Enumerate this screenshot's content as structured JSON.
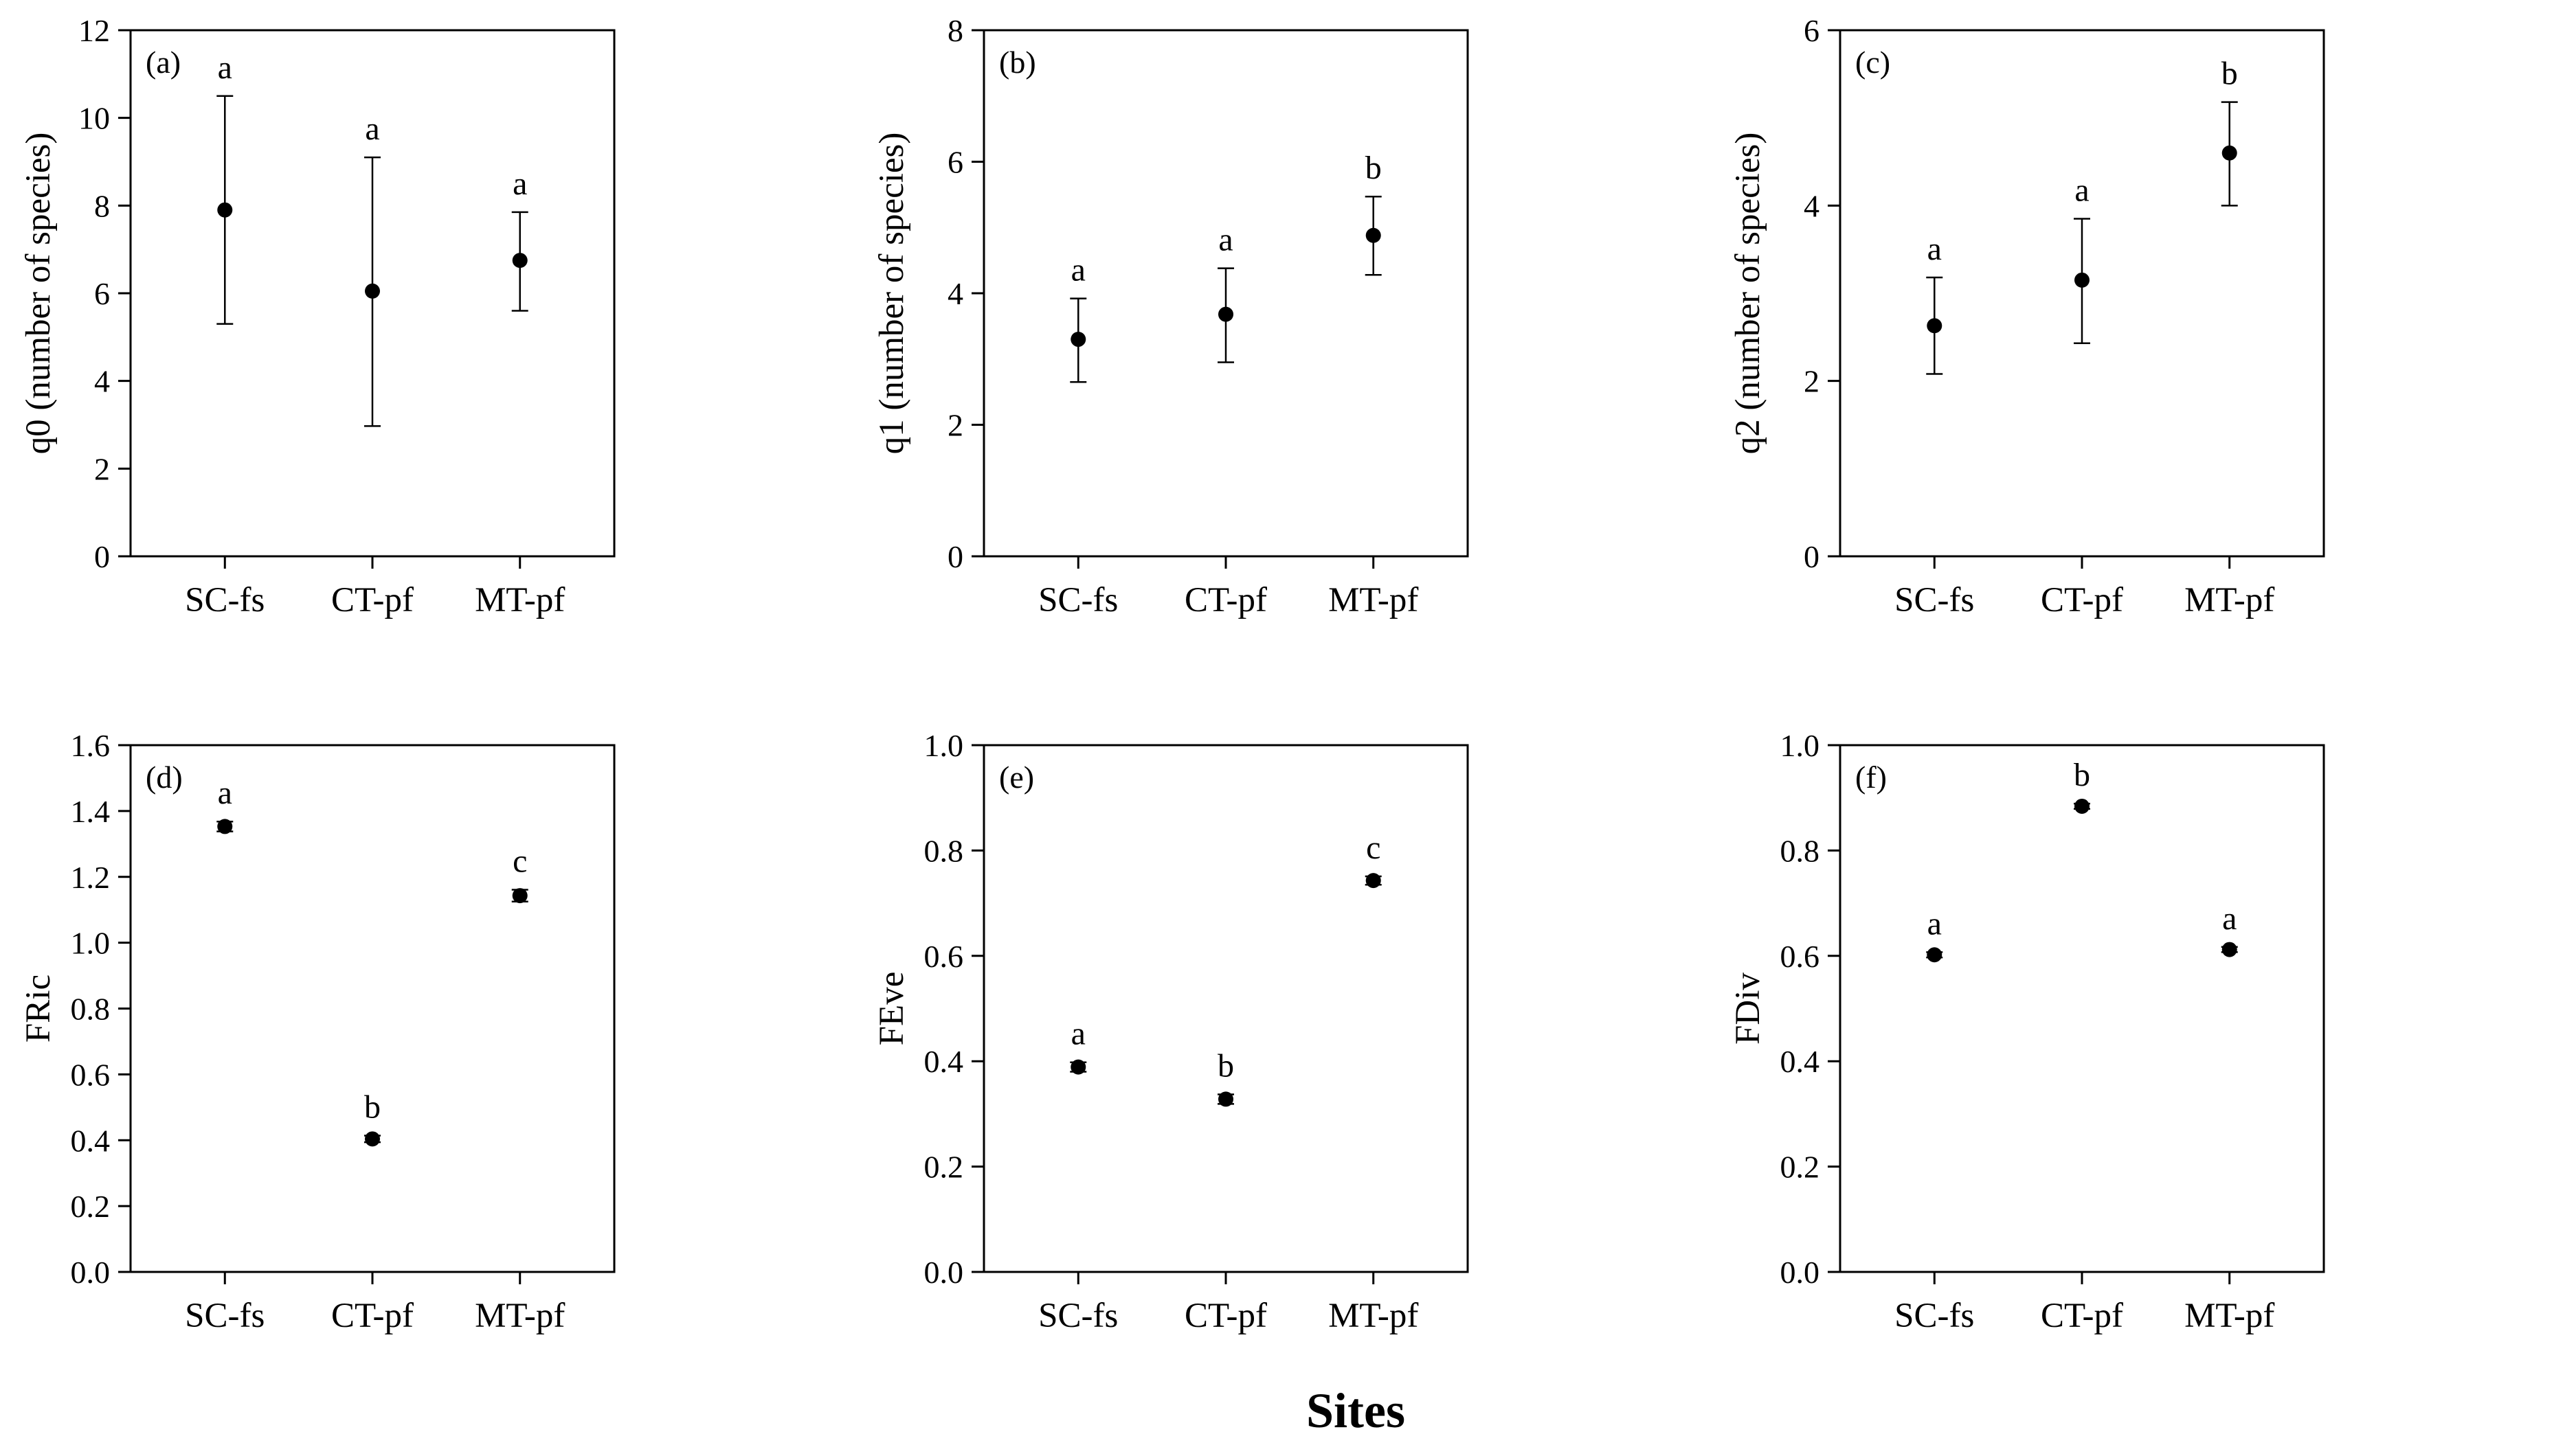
{
  "figure": {
    "xlabel": "Sites",
    "colors": {
      "axis": "#000000",
      "point": "#000000",
      "background": "#ffffff"
    }
  },
  "chart_data": [
    {
      "type": "scatter",
      "panel": "(a)",
      "ylabel": "q0 (number of species)",
      "ylim": [
        0,
        12
      ],
      "yticks": [
        0,
        2,
        4,
        6,
        8,
        10,
        12
      ],
      "tick_labels": [
        "0",
        "2",
        "4",
        "6",
        "8",
        "10",
        "12"
      ],
      "categories": [
        "SC-fs",
        "CT-pf",
        "MT-pf"
      ],
      "values": [
        7.9,
        6.05,
        6.75
      ],
      "err_low": [
        5.3,
        2.97,
        5.6
      ],
      "err_high": [
        10.5,
        9.1,
        7.85
      ],
      "letters": [
        "a",
        "a",
        "a"
      ]
    },
    {
      "type": "scatter",
      "panel": "(b)",
      "ylabel": "q1 (number of species)",
      "ylim": [
        0,
        8
      ],
      "yticks": [
        0,
        2,
        4,
        6,
        8
      ],
      "tick_labels": [
        "0",
        "2",
        "4",
        "6",
        "8"
      ],
      "categories": [
        "SC-fs",
        "CT-pf",
        "MT-pf"
      ],
      "values": [
        3.3,
        3.68,
        4.88
      ],
      "err_low": [
        2.65,
        2.95,
        4.28
      ],
      "err_high": [
        3.92,
        4.38,
        5.47
      ],
      "letters": [
        "a",
        "a",
        "b"
      ]
    },
    {
      "type": "scatter",
      "panel": "(c)",
      "ylabel": "q2 (number of species)",
      "ylim": [
        0,
        6
      ],
      "yticks": [
        0,
        2,
        4,
        6
      ],
      "tick_labels": [
        "0",
        "2",
        "4",
        "6"
      ],
      "categories": [
        "SC-fs",
        "CT-pf",
        "MT-pf"
      ],
      "values": [
        2.63,
        3.15,
        4.6
      ],
      "err_low": [
        2.08,
        2.43,
        4.0
      ],
      "err_high": [
        3.18,
        3.85,
        5.18
      ],
      "letters": [
        "a",
        "a",
        "b"
      ]
    },
    {
      "type": "scatter",
      "panel": "(d)",
      "ylabel": "FRic",
      "ylim": [
        0,
        1.6
      ],
      "yticks": [
        0,
        0.2,
        0.4,
        0.6,
        0.8,
        1.0,
        1.2,
        1.4,
        1.6
      ],
      "tick_labels": [
        "0.0",
        "0.2",
        "0.4",
        "0.6",
        "0.8",
        "1.0",
        "1.2",
        "1.4",
        "1.6"
      ],
      "categories": [
        "SC-fs",
        "CT-pf",
        "MT-pf"
      ],
      "values": [
        1.353,
        0.404,
        1.143
      ],
      "err_low": [
        1.338,
        0.394,
        1.125
      ],
      "err_high": [
        1.368,
        0.414,
        1.161
      ],
      "letters": [
        "a",
        "b",
        "c"
      ]
    },
    {
      "type": "scatter",
      "panel": "(e)",
      "ylabel": "FEve",
      "ylim": [
        0,
        1.0
      ],
      "yticks": [
        0,
        0.2,
        0.4,
        0.6,
        0.8,
        1.0
      ],
      "tick_labels": [
        "0.0",
        "0.2",
        "0.4",
        "0.6",
        "0.8",
        "1.0"
      ],
      "categories": [
        "SC-fs",
        "CT-pf",
        "MT-pf"
      ],
      "values": [
        0.389,
        0.328,
        0.743
      ],
      "err_low": [
        0.38,
        0.319,
        0.735
      ],
      "err_high": [
        0.398,
        0.337,
        0.751
      ],
      "letters": [
        "a",
        "b",
        "c"
      ]
    },
    {
      "type": "scatter",
      "panel": "(f)",
      "ylabel": "FDiv",
      "ylim": [
        0,
        1.0
      ],
      "yticks": [
        0,
        0.2,
        0.4,
        0.6,
        0.8,
        1.0
      ],
      "tick_labels": [
        "0.0",
        "0.2",
        "0.4",
        "0.6",
        "0.8",
        "1.0"
      ],
      "categories": [
        "SC-fs",
        "CT-pf",
        "MT-pf"
      ],
      "values": [
        0.602,
        0.884,
        0.612
      ],
      "err_low": [
        0.597,
        0.879,
        0.607
      ],
      "err_high": [
        0.607,
        0.889,
        0.617
      ],
      "letters": [
        "a",
        "b",
        "a"
      ]
    }
  ]
}
